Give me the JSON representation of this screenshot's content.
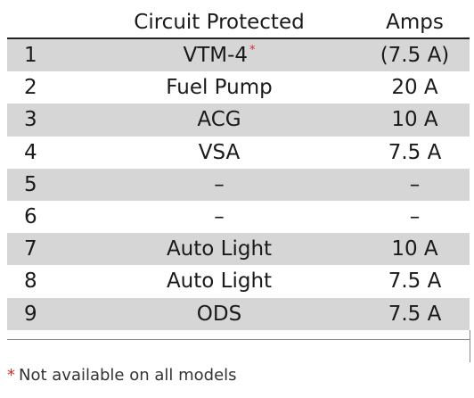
{
  "table": {
    "headers": {
      "number": "",
      "circuit": "Circuit Protected",
      "amps": "Amps"
    },
    "rows": [
      {
        "number": "1",
        "circuit": "VTM-4",
        "note_marker": "*",
        "amps": "(7.5 A)",
        "shaded": true
      },
      {
        "number": "2",
        "circuit": "Fuel Pump",
        "note_marker": "",
        "amps": "20 A",
        "shaded": false
      },
      {
        "number": "3",
        "circuit": "ACG",
        "note_marker": "",
        "amps": "10 A",
        "shaded": true
      },
      {
        "number": "4",
        "circuit": "VSA",
        "note_marker": "",
        "amps": "7.5 A",
        "shaded": false
      },
      {
        "number": "5",
        "circuit": "–",
        "note_marker": "",
        "amps": "–",
        "shaded": true
      },
      {
        "number": "6",
        "circuit": "–",
        "note_marker": "",
        "amps": "–",
        "shaded": false
      },
      {
        "number": "7",
        "circuit": "Auto Light",
        "note_marker": "",
        "amps": "10 A",
        "shaded": true
      },
      {
        "number": "8",
        "circuit": "Auto Light",
        "note_marker": "",
        "amps": "7.5 A",
        "shaded": false
      },
      {
        "number": "9",
        "circuit": "ODS",
        "note_marker": "",
        "amps": "7.5 A",
        "shaded": true
      }
    ]
  },
  "footnote": {
    "marker": "*",
    "text": "Not available on all models"
  },
  "colors": {
    "row_shade": "#d6d6d6",
    "asterisk": "#d0312d"
  }
}
